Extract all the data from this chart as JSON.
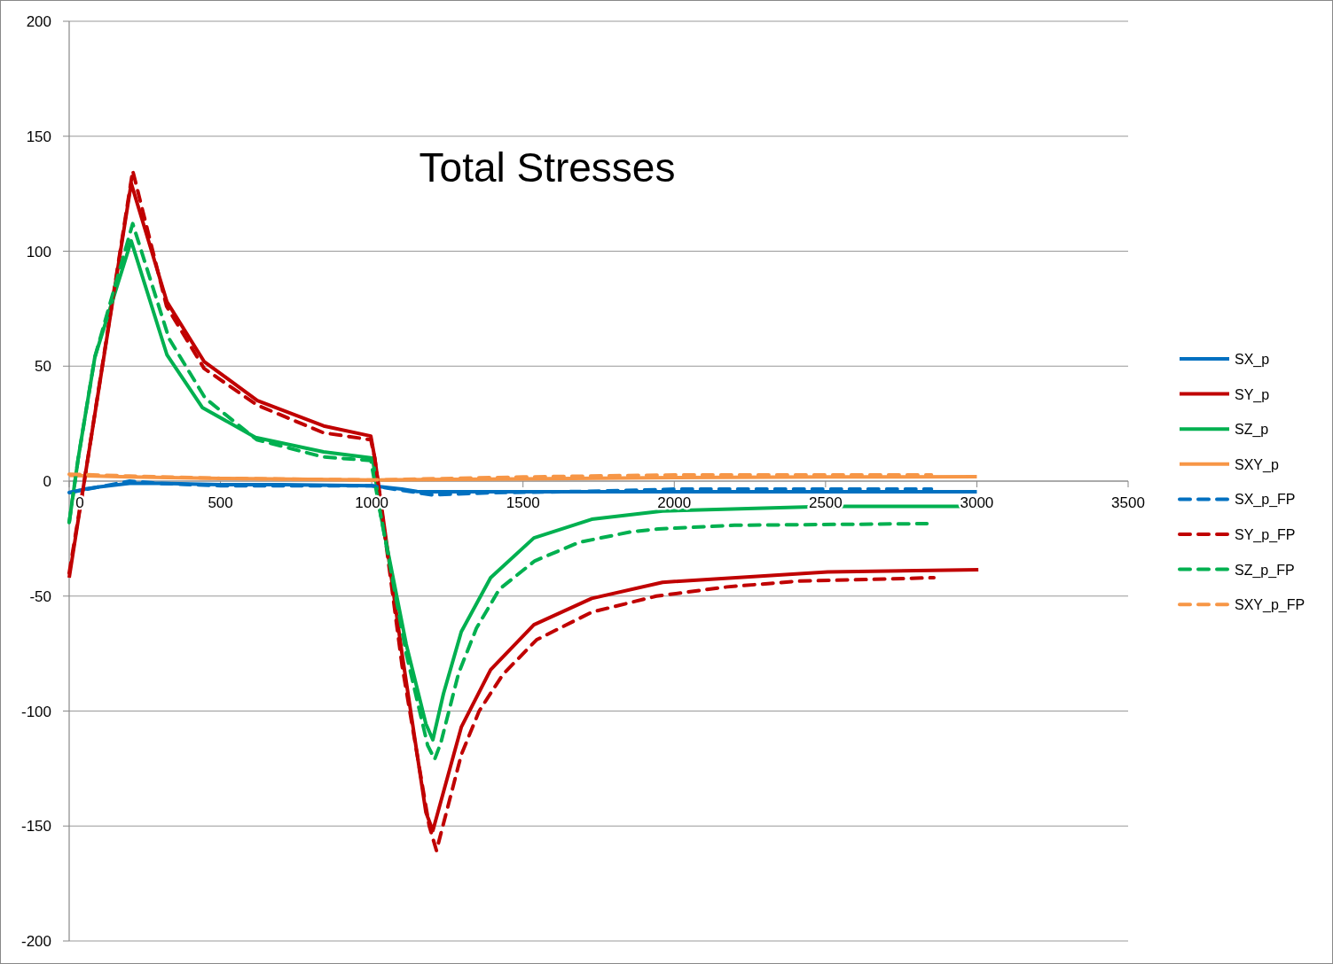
{
  "chart_data": {
    "type": "line",
    "title": "Total Stresses",
    "xlim": [
      0,
      3500
    ],
    "xticks": [
      0,
      500,
      1000,
      1500,
      2000,
      2500,
      3000,
      3500
    ],
    "ylim": [
      -200,
      200
    ],
    "yticks": [
      -200,
      -150,
      -100,
      -50,
      0,
      50,
      100,
      150,
      200
    ],
    "grid": "y",
    "legend": "right",
    "marker": "none",
    "series": [
      {
        "name": "SX_p",
        "color": "#0070c0",
        "line_style": "solid",
        "x": [
          0,
          50,
          100,
          200,
          300,
          500,
          700,
          1000,
          1100,
          1150,
          1200,
          1500,
          2000,
          2500,
          3000
        ],
        "values": [
          -5,
          -3.5,
          -2.5,
          -1,
          -1,
          -1.5,
          -1.5,
          -2,
          -3.5,
          -4.5,
          -4.6,
          -4.6,
          -4.6,
          -4.6,
          -4.6
        ]
      },
      {
        "name": "SY_p",
        "color": "#c00000",
        "line_style": "solid",
        "x": [
          0,
          50,
          205,
          323,
          446,
          622,
          841,
          997,
          1010,
          1100,
          1179,
          1202,
          1296,
          1393,
          1536,
          1727,
          1961,
          2507,
          3005
        ],
        "values": [
          -42,
          0,
          129.5,
          78,
          52,
          35,
          24,
          19.6,
          10,
          -75,
          -144,
          -152,
          -107,
          -82,
          -62.5,
          -51,
          -44,
          -39.5,
          -38.5
        ]
      },
      {
        "name": "SZ_p",
        "color": "#00b050",
        "line_style": "solid",
        "x": [
          0,
          30,
          85,
          205,
          323,
          440,
          616,
          841,
          1003,
          1030,
          1114,
          1179,
          1202,
          1237,
          1296,
          1393,
          1536,
          1727,
          1961,
          2507,
          3005
        ],
        "values": [
          -18,
          10,
          54,
          104.5,
          55,
          32,
          19,
          12.7,
          10,
          -15,
          -71,
          -105.6,
          -112.5,
          -92.5,
          -65.5,
          -42,
          -24.7,
          -16.6,
          -13,
          -11,
          -11
        ]
      },
      {
        "name": "SXY_p",
        "color": "#f79646",
        "line_style": "solid",
        "x": [
          0,
          200,
          500,
          1000,
          1500,
          2000,
          2500,
          3000
        ],
        "values": [
          2.5,
          1.8,
          1.2,
          0.5,
          1,
          1.5,
          1.8,
          1.9
        ]
      },
      {
        "name": "SX_p_FP",
        "color": "#0070c0",
        "line_style": "dashed",
        "x": [
          0,
          100,
          200,
          300,
          500,
          1000,
          1100,
          1200,
          1400,
          1700,
          2000,
          2500,
          2850
        ],
        "values": [
          -5,
          -2.5,
          0,
          -1,
          -2,
          -2,
          -4,
          -6,
          -5,
          -4.5,
          -3.5,
          -3.5,
          -3.5
        ]
      },
      {
        "name": "SY_p_FP",
        "color": "#c00000",
        "line_style": "dashed",
        "x": [
          0,
          50,
          210,
          322,
          446,
          622,
          841,
          997,
          1010,
          1100,
          1190,
          1214,
          1237,
          1296,
          1355,
          1434,
          1545,
          1727,
          1941,
          2175,
          2410,
          2636,
          2858
        ],
        "values": [
          -40,
          0,
          135,
          76,
          49,
          33,
          21,
          18,
          10,
          -80,
          -150,
          -160.7,
          -149,
          -119,
          -100,
          -84,
          -69,
          -57,
          -50,
          -46,
          -43.5,
          -42.8,
          -42
        ]
      },
      {
        "name": "SZ_p_FP",
        "color": "#00b050",
        "line_style": "dashed",
        "x": [
          0,
          30,
          85,
          210,
          330,
          450,
          620,
          840,
          997,
          1030,
          1114,
          1185,
          1208,
          1228,
          1287,
          1346,
          1422,
          1539,
          1686,
          1859,
          1947,
          2199,
          2468,
          2835
        ],
        "values": [
          -18,
          10,
          54,
          112,
          62,
          36,
          18,
          10.5,
          9,
          -15,
          -75,
          -115,
          -121,
          -114,
          -83.6,
          -64,
          -47,
          -34.7,
          -26.6,
          -22,
          -20.8,
          -19.2,
          -18.9,
          -18.5
        ]
      },
      {
        "name": "SXY_p_FP",
        "color": "#f79646",
        "line_style": "dashed",
        "x": [
          0,
          200,
          500,
          1000,
          1500,
          2000,
          2500,
          2850
        ],
        "values": [
          3,
          2.2,
          1.2,
          0.5,
          1.8,
          2.7,
          2.7,
          2.7
        ]
      }
    ]
  }
}
